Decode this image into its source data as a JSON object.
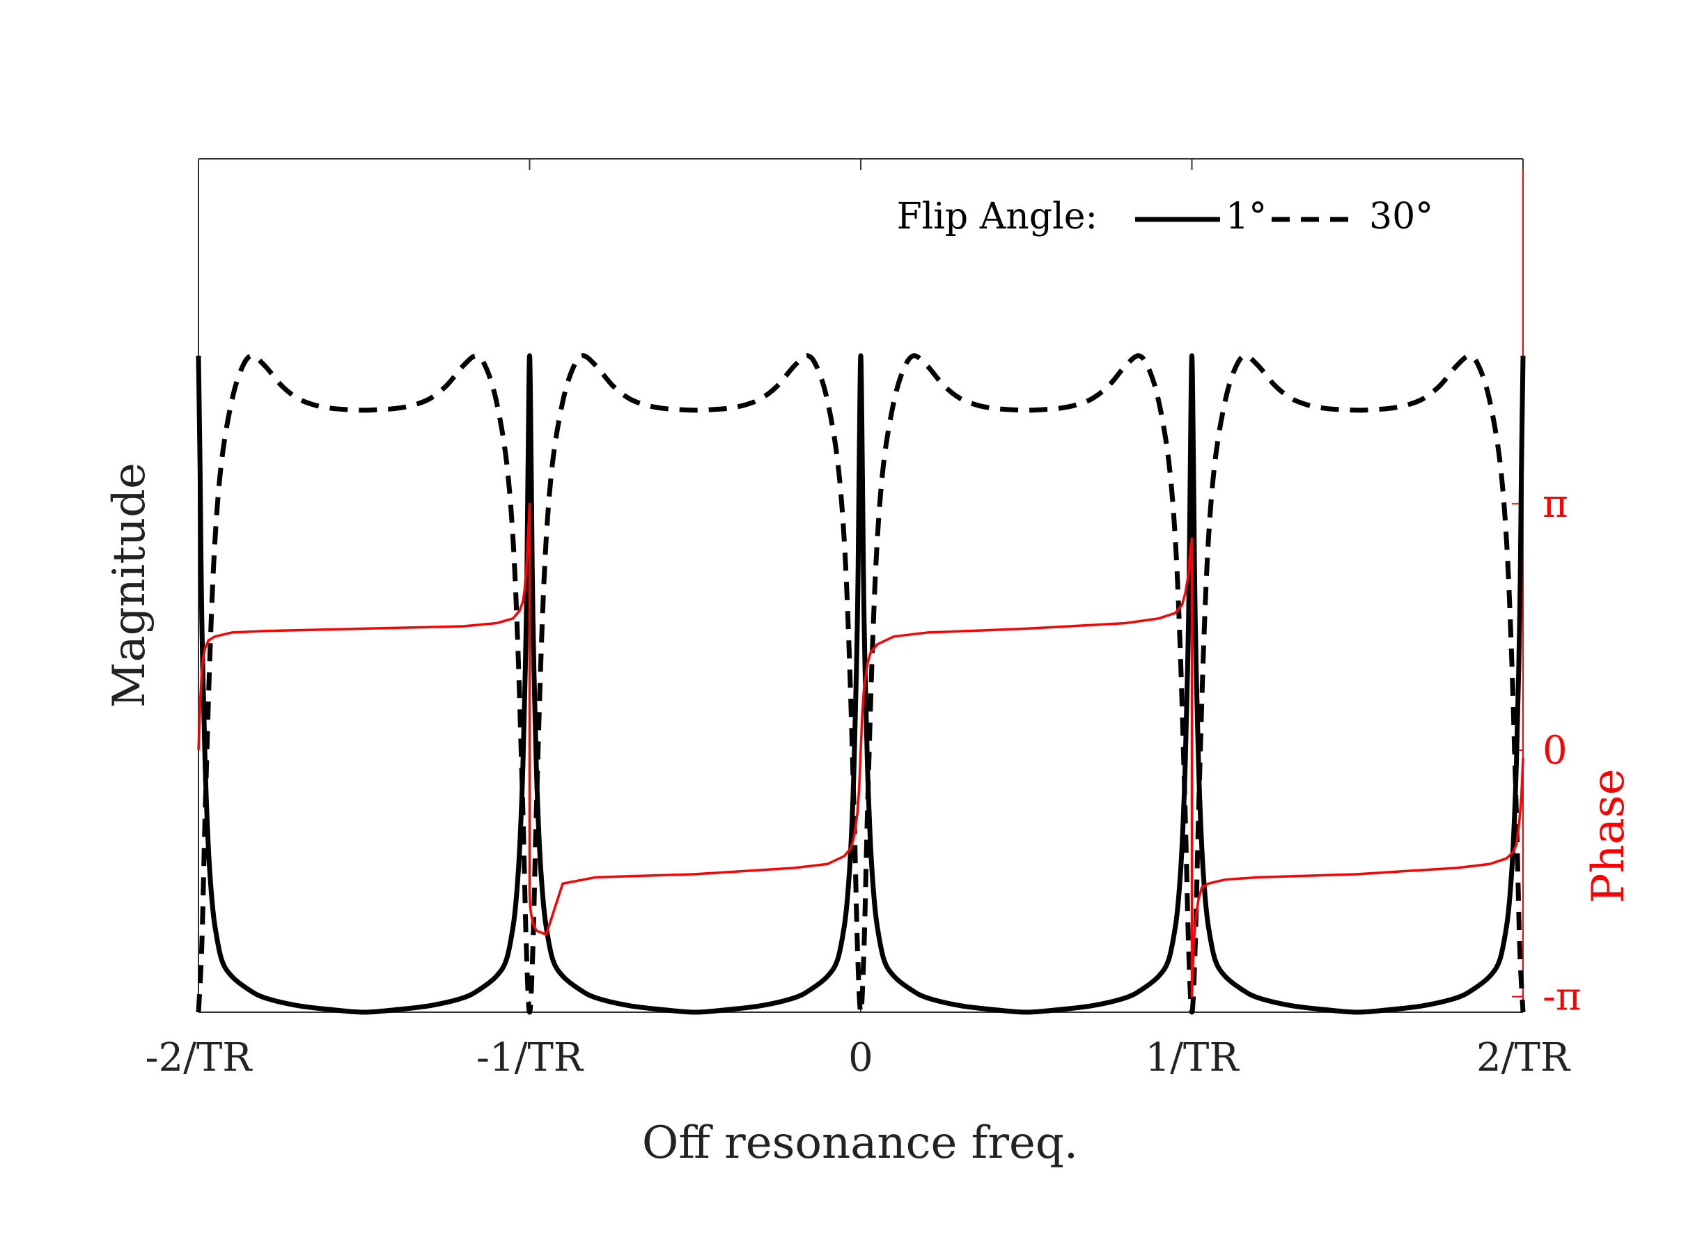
{
  "chart_data": {
    "type": "line",
    "title": "",
    "xlabel": "Off resonance freq.",
    "ylabel": "Magnitude",
    "y2label": "Phase",
    "xlim": [
      -2,
      2
    ],
    "ylim": [
      0.0,
      1.3
    ],
    "y2lim": [
      -3.34,
      7.54
    ],
    "x_ticks": [
      -2,
      -1,
      0,
      1,
      2
    ],
    "x_tick_labels": [
      "-2/TR",
      "-1/TR",
      "0",
      "1/TR",
      "2/TR"
    ],
    "y2_ticks": [
      -3.1416,
      0,
      3.1416
    ],
    "y2_tick_labels": [
      "-π",
      "0",
      "π"
    ],
    "grid": false,
    "legend": {
      "title": "Flip Angle:",
      "location": "top-right",
      "entries": [
        {
          "label": "1°",
          "style": "solid"
        },
        {
          "label": "30°",
          "style": "dashed"
        }
      ]
    },
    "series": [
      {
        "name": "1°",
        "axis": "left",
        "color": "#000000",
        "style": "solid",
        "period": 1,
        "x": [
          0,
          0.005,
          0.01,
          0.02,
          0.03,
          0.04,
          0.05,
          0.07,
          0.1,
          0.15,
          0.2,
          0.3,
          0.4,
          0.5
        ],
        "y": [
          1.0,
          0.82,
          0.6,
          0.38,
          0.25,
          0.175,
          0.13,
          0.08,
          0.055,
          0.035,
          0.022,
          0.01,
          0.004,
          0.0
        ]
      },
      {
        "name": "30°",
        "axis": "left",
        "color": "#000000",
        "style": "dashed",
        "period": 1,
        "x": [
          0,
          0.01,
          0.02,
          0.035,
          0.05,
          0.07,
          0.1,
          0.13,
          0.16,
          0.2,
          0.25,
          0.3,
          0.35,
          0.4,
          0.45,
          0.5
        ],
        "y": [
          0.0,
          0.1,
          0.3,
          0.55,
          0.72,
          0.84,
          0.93,
          0.98,
          1.0,
          0.985,
          0.955,
          0.935,
          0.925,
          0.92,
          0.918,
          0.917
        ]
      },
      {
        "name": "Phase",
        "axis": "right",
        "color": "#ff0000",
        "style": "solid",
        "x": [
          -2.0,
          -1.995,
          -1.99,
          -1.985,
          -1.98,
          -1.97,
          -1.95,
          -1.9,
          -1.8,
          -1.5,
          -1.2,
          -1.1,
          -1.05,
          -1.03,
          -1.02,
          -1.015,
          -1.01,
          -1.005,
          -1.0,
          -1.0,
          -0.998,
          -0.995,
          -0.99,
          -0.98,
          -0.95,
          -0.9,
          -0.8,
          -0.5,
          -0.2,
          -0.1,
          -0.05,
          -0.03,
          -0.02,
          -0.015,
          -0.01,
          -0.005,
          0.0,
          0.005,
          0.01,
          0.015,
          0.02,
          0.03,
          0.05,
          0.1,
          0.2,
          0.5,
          0.8,
          0.9,
          0.95,
          0.97,
          0.98,
          0.99,
          0.995,
          1.0,
          1.0,
          1.005,
          1.01,
          1.02,
          1.03,
          1.05,
          1.1,
          1.2,
          1.5,
          1.8,
          1.9,
          1.95,
          1.97,
          1.98,
          1.985,
          1.99,
          1.995,
          2.0
        ],
        "y": [
          0.0,
          0.6,
          1.0,
          1.2,
          1.3,
          1.4,
          1.45,
          1.5,
          1.52,
          1.55,
          1.58,
          1.62,
          1.68,
          1.78,
          1.9,
          2.05,
          2.3,
          2.7,
          3.14,
          -1.8,
          -2.0,
          -2.1,
          -2.2,
          -2.3,
          -2.35,
          -1.7,
          -1.62,
          -1.58,
          -1.5,
          -1.45,
          -1.35,
          -1.25,
          -1.1,
          -0.95,
          -0.8,
          -0.5,
          0.0,
          0.5,
          0.8,
          0.95,
          1.1,
          1.25,
          1.35,
          1.45,
          1.5,
          1.55,
          1.62,
          1.68,
          1.75,
          1.85,
          2.0,
          2.25,
          2.55,
          2.7,
          -3.14,
          -2.5,
          -2.2,
          -1.9,
          -1.75,
          -1.7,
          -1.65,
          -1.62,
          -1.58,
          -1.5,
          -1.45,
          -1.38,
          -1.3,
          -1.2,
          -1.05,
          -0.85,
          -0.6,
          -0.1
        ]
      }
    ]
  }
}
